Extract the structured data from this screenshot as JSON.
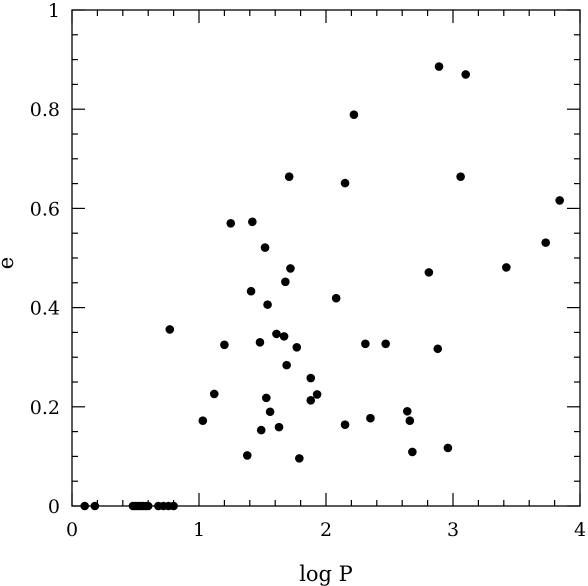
{
  "chart_data": {
    "type": "scatter",
    "title": "",
    "xlabel": "log P",
    "ylabel": "e",
    "xlim": [
      0,
      4
    ],
    "ylim": [
      0,
      1
    ],
    "x_ticks": [
      0,
      1,
      2,
      3,
      4
    ],
    "x_tick_labels": [
      "0",
      "1",
      "2",
      "3",
      "4"
    ],
    "y_ticks": [
      0,
      0.2,
      0.4,
      0.6,
      0.8,
      1
    ],
    "y_tick_labels": [
      "0",
      "0.2",
      "0.4",
      "0.6",
      "0.8",
      "1"
    ],
    "x_minor_step": 0.2,
    "y_minor_step": 0.05,
    "grid": false,
    "legend": "none",
    "marker_color": "#000000",
    "series": [
      {
        "name": "",
        "points": [
          [
            0.1,
            0.0
          ],
          [
            0.18,
            0.0
          ],
          [
            0.48,
            0.0
          ],
          [
            0.5,
            0.0
          ],
          [
            0.52,
            0.0
          ],
          [
            0.54,
            0.0
          ],
          [
            0.56,
            0.0
          ],
          [
            0.58,
            0.0
          ],
          [
            0.6,
            0.0
          ],
          [
            0.68,
            0.0
          ],
          [
            0.72,
            0.0
          ],
          [
            0.76,
            0.0
          ],
          [
            0.8,
            0.0
          ],
          [
            0.77,
            0.356
          ],
          [
            1.03,
            0.172
          ],
          [
            1.12,
            0.226
          ],
          [
            1.2,
            0.325
          ],
          [
            1.25,
            0.57
          ],
          [
            1.38,
            0.102
          ],
          [
            1.41,
            0.433
          ],
          [
            1.42,
            0.573
          ],
          [
            1.48,
            0.33
          ],
          [
            1.49,
            0.153
          ],
          [
            1.52,
            0.521
          ],
          [
            1.53,
            0.218
          ],
          [
            1.54,
            0.406
          ],
          [
            1.56,
            0.19
          ],
          [
            1.61,
            0.347
          ],
          [
            1.63,
            0.159
          ],
          [
            1.67,
            0.342
          ],
          [
            1.68,
            0.452
          ],
          [
            1.69,
            0.284
          ],
          [
            1.71,
            0.664
          ],
          [
            1.72,
            0.479
          ],
          [
            1.77,
            0.32
          ],
          [
            1.79,
            0.096
          ],
          [
            1.88,
            0.258
          ],
          [
            1.88,
            0.213
          ],
          [
            1.93,
            0.225
          ],
          [
            2.08,
            0.419
          ],
          [
            2.15,
            0.651
          ],
          [
            2.15,
            0.164
          ],
          [
            2.22,
            0.789
          ],
          [
            2.31,
            0.327
          ],
          [
            2.35,
            0.177
          ],
          [
            2.47,
            0.327
          ],
          [
            2.64,
            0.191
          ],
          [
            2.66,
            0.172
          ],
          [
            2.68,
            0.109
          ],
          [
            2.81,
            0.471
          ],
          [
            2.88,
            0.317
          ],
          [
            2.89,
            0.886
          ],
          [
            2.96,
            0.117
          ],
          [
            3.06,
            0.664
          ],
          [
            3.1,
            0.87
          ],
          [
            3.42,
            0.481
          ],
          [
            3.73,
            0.531
          ],
          [
            3.84,
            0.616
          ]
        ]
      }
    ]
  }
}
